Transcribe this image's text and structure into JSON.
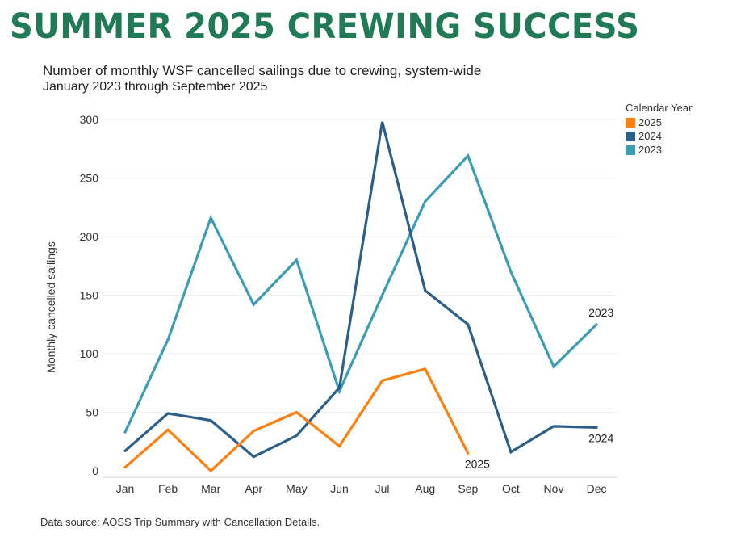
{
  "banner": "SUMMER 2025 CREWING SUCCESS",
  "colors": {
    "banner": "#1f7a55"
  },
  "chart_data": {
    "type": "line",
    "title": "Number of monthly WSF cancelled sailings due to crewing, system-wide",
    "subtitle": "January 2023 through September 2025",
    "xlabel": "",
    "ylabel": "Monthly cancelled sailings",
    "categories": [
      "Jan",
      "Feb",
      "Mar",
      "Apr",
      "May",
      "Jun",
      "Jul",
      "Aug",
      "Sep",
      "Oct",
      "Nov",
      "Dec"
    ],
    "ylim": [
      0,
      300
    ],
    "yticks": [
      0,
      50,
      100,
      150,
      200,
      250,
      300
    ],
    "grid": true,
    "legend": {
      "title": "Calendar Year",
      "placement": "top-right",
      "entries": [
        "2025",
        "2024",
        "2023"
      ]
    },
    "series": [
      {
        "name": "2025",
        "color": "#ff7f0e",
        "end_label": "2025",
        "values": [
          3,
          35,
          0,
          34,
          50,
          21,
          77,
          87,
          15
        ]
      },
      {
        "name": "2024",
        "color": "#2b5f8a",
        "end_label": "2024",
        "values": [
          17,
          49,
          43,
          12,
          30,
          71,
          298,
          154,
          125,
          16,
          38,
          37
        ]
      },
      {
        "name": "2023",
        "color": "#3a9db5",
        "end_label": "2023",
        "values": [
          33,
          112,
          216,
          142,
          180,
          68,
          150,
          230,
          269,
          170,
          89,
          125
        ]
      }
    ]
  },
  "footer": {
    "source": "Data source: AOSS Trip Summary with Cancellation Details."
  }
}
